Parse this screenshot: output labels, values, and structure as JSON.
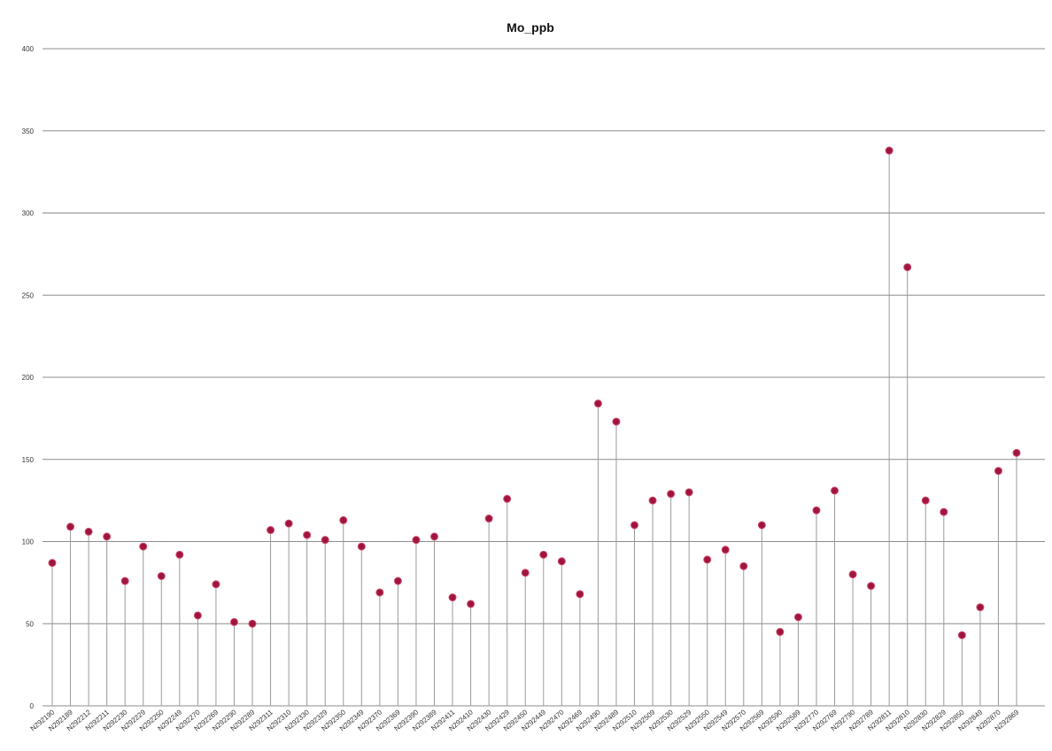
{
  "chart_data": {
    "type": "scatter",
    "title": "Mo_ppb",
    "xlabel": "",
    "ylabel": "",
    "ylim": [
      0,
      400
    ],
    "yticks": [
      0,
      50,
      100,
      150,
      200,
      250,
      300,
      350,
      400
    ],
    "grid": true,
    "legend": "none",
    "marker_color": "#a0153e",
    "stem_color": "#9a9a9a",
    "grid_color": "#8c8c8c",
    "categories": [
      "N292190",
      "N292189",
      "N292212",
      "N292211",
      "N292230",
      "N292229",
      "N292250",
      "N292249",
      "N292270",
      "N292269",
      "N292290",
      "N292289",
      "N292311",
      "N292310",
      "N292330",
      "N292329",
      "N292350",
      "N292349",
      "N292370",
      "N292369",
      "N292390",
      "N292389",
      "N292411",
      "N292410",
      "N292430",
      "N292429",
      "N292450",
      "N292449",
      "N292470",
      "N292469",
      "N292490",
      "N292489",
      "N292510",
      "N292509",
      "N292530",
      "N292529",
      "N292550",
      "N292549",
      "N292570",
      "N292569",
      "N292590",
      "N292589",
      "N292770",
      "N292769",
      "N292790",
      "N292789",
      "N292811",
      "N292810",
      "N292830",
      "N292829",
      "N292850",
      "N292849",
      "N292870",
      "N292869"
    ],
    "values": [
      87,
      109,
      106,
      103,
      76,
      97,
      79,
      92,
      55,
      74,
      51,
      50,
      107,
      111,
      104,
      101,
      113,
      97,
      69,
      76,
      101,
      103,
      66,
      62,
      114,
      126,
      81,
      92,
      88,
      68,
      184,
      173,
      110,
      125,
      129,
      130,
      89,
      95,
      85,
      110,
      45,
      54,
      119,
      131,
      80,
      73,
      338,
      267,
      125,
      118,
      43,
      60,
      143,
      154
    ]
  }
}
